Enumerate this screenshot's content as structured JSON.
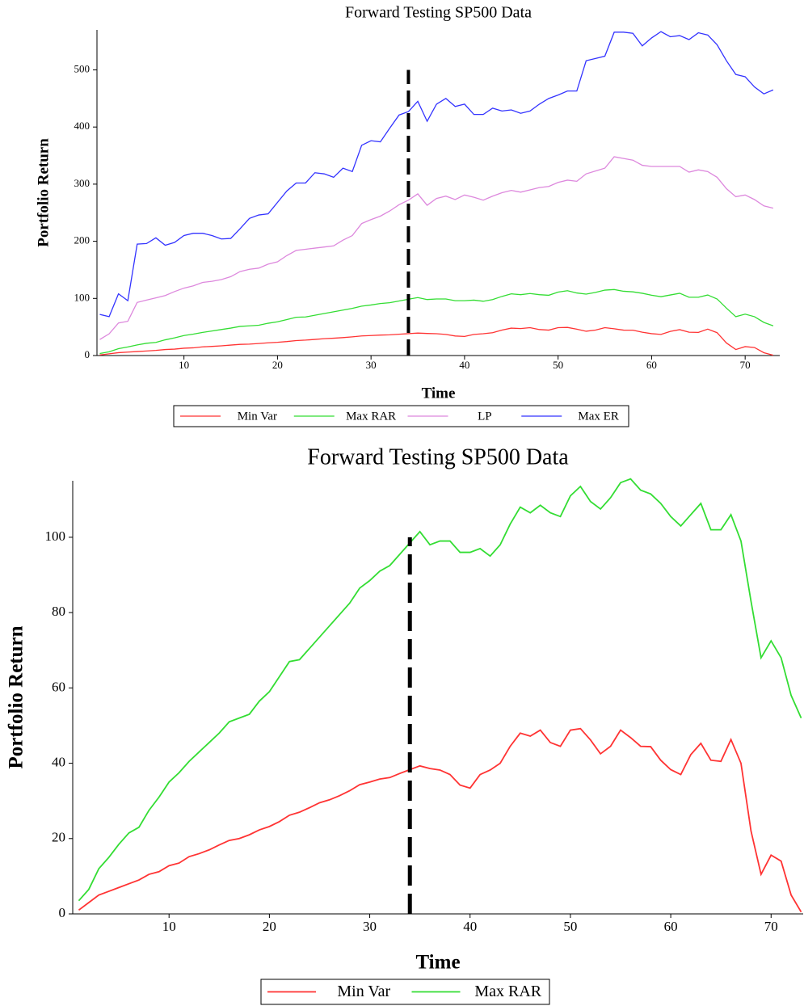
{
  "chart_data": [
    {
      "type": "line",
      "title": "Forward Testing SP500 Data",
      "x_label": "Time",
      "y_label": "Portfolio Return",
      "xlim": [
        0.7,
        73.7
      ],
      "xticks": [
        10,
        20,
        30,
        40,
        50,
        60,
        70
      ],
      "ylim": [
        0,
        570
      ],
      "yticks": [
        0,
        100,
        200,
        300,
        400,
        500
      ],
      "vline_x": 34,
      "vline_top": 500,
      "x": [
        1,
        2,
        3,
        4,
        5,
        6,
        7,
        8,
        9,
        10,
        11,
        12,
        13,
        14,
        15,
        16,
        17,
        18,
        19,
        20,
        21,
        22,
        23,
        24,
        25,
        26,
        27,
        28,
        29,
        30,
        31,
        32,
        33,
        34,
        35,
        36,
        37,
        38,
        39,
        40,
        41,
        42,
        43,
        44,
        45,
        46,
        47,
        48,
        49,
        50,
        51,
        52,
        53,
        54,
        55,
        56,
        57,
        58,
        59,
        60,
        61,
        62,
        63,
        64,
        65,
        66,
        67,
        68,
        69,
        70,
        71,
        72,
        73
      ],
      "series": [
        {
          "name": "Min Var",
          "color": "#ff3333",
          "values": [
            1,
            3,
            5,
            6,
            7,
            8,
            9,
            10.5,
            11.2,
            12.8,
            13.5,
            15.2,
            16,
            17,
            18.3,
            19.5,
            20,
            21,
            22.3,
            23.2,
            24.5,
            26.2,
            27,
            28.2,
            29.5,
            30.3,
            31.4,
            32.7,
            34.3,
            35,
            35.8,
            36.2,
            37.3,
            38.3,
            39.3,
            38.6,
            38.2,
            37,
            34.2,
            33.4,
            37,
            38.2,
            40,
            44.5,
            48,
            47.2,
            48.8,
            45.5,
            44.5,
            48.8,
            49.2,
            46.2,
            42.5,
            44.5,
            48.8,
            46.8,
            44.5,
            44.4,
            40.8,
            38.3,
            37,
            42.3,
            45.3,
            40.8,
            40.5,
            46.3,
            40,
            22,
            10.5,
            15.6,
            14,
            5,
            0.5
          ]
        },
        {
          "name": "Max RAR",
          "color": "#33dd33",
          "values": [
            3.5,
            6.5,
            12,
            15,
            18.5,
            21.5,
            23,
            27.5,
            31,
            35,
            37.5,
            40.5,
            43,
            45.5,
            48,
            51,
            52,
            53,
            56.5,
            59,
            63,
            67,
            67.5,
            70.5,
            73.5,
            76.5,
            79.5,
            82.5,
            86.5,
            88.5,
            91,
            92.5,
            95.5,
            98.5,
            101.5,
            98,
            99,
            99,
            96,
            96,
            97,
            95,
            98,
            103.5,
            108,
            106.5,
            108.5,
            106.5,
            105.5,
            111,
            113.5,
            109.5,
            107.5,
            110.5,
            114.5,
            115.5,
            112.5,
            111.5,
            109,
            105.5,
            103,
            106,
            109,
            102,
            102,
            106,
            99,
            83,
            68,
            72.5,
            68,
            58,
            52
          ]
        },
        {
          "name": "LP",
          "color": "#dd88dd",
          "values": [
            28,
            38,
            57,
            60,
            93,
            97,
            101,
            105,
            112,
            118,
            122,
            128,
            130,
            133,
            138,
            147,
            151,
            153,
            160,
            164,
            175,
            184,
            186,
            188,
            190,
            192,
            202,
            210,
            231,
            238,
            244,
            253,
            264,
            272,
            283,
            263,
            275,
            279,
            273,
            281,
            277,
            272,
            279,
            285,
            289,
            286,
            290,
            294,
            296,
            303,
            307,
            305,
            318,
            323,
            328,
            348,
            345,
            342,
            333,
            331,
            331,
            331,
            331,
            321,
            325,
            322,
            312,
            292,
            278,
            281,
            273,
            262,
            258
          ]
        },
        {
          "name": "Max ER",
          "color": "#3333ff",
          "values": [
            72,
            68,
            108,
            96,
            195,
            196,
            206,
            193,
            198,
            210,
            214,
            214,
            210,
            204,
            205,
            222,
            240,
            246,
            248,
            268,
            288,
            302,
            302,
            320,
            318,
            312,
            328,
            322,
            368,
            376,
            374,
            398,
            421,
            427,
            445,
            410,
            440,
            450,
            436,
            440,
            422,
            422,
            433,
            428,
            430,
            424,
            428,
            440,
            450,
            456,
            463,
            463,
            516,
            520,
            524,
            566,
            566,
            564,
            542,
            556,
            567,
            558,
            560,
            553,
            565,
            561,
            544,
            516,
            492,
            488,
            470,
            458,
            465
          ]
        }
      ]
    },
    {
      "type": "line",
      "title": "Forward Testing SP500 Data",
      "x_label": "Time",
      "y_label": "Portfolio Return",
      "xlim": [
        0.4,
        73.2
      ],
      "xticks": [
        10,
        20,
        30,
        40,
        50,
        60,
        70
      ],
      "ylim": [
        0,
        115
      ],
      "yticks": [
        0,
        20,
        40,
        60,
        80,
        100
      ],
      "vline_x": 34,
      "vline_top": 100,
      "x": [
        1,
        2,
        3,
        4,
        5,
        6,
        7,
        8,
        9,
        10,
        11,
        12,
        13,
        14,
        15,
        16,
        17,
        18,
        19,
        20,
        21,
        22,
        23,
        24,
        25,
        26,
        27,
        28,
        29,
        30,
        31,
        32,
        33,
        34,
        35,
        36,
        37,
        38,
        39,
        40,
        41,
        42,
        43,
        44,
        45,
        46,
        47,
        48,
        49,
        50,
        51,
        52,
        53,
        54,
        55,
        56,
        57,
        58,
        59,
        60,
        61,
        62,
        63,
        64,
        65,
        66,
        67,
        68,
        69,
        70,
        71,
        72,
        73
      ],
      "series": [
        {
          "name": "Min Var",
          "color": "#ff3333",
          "values": [
            1,
            3,
            5,
            6,
            7,
            8,
            9,
            10.5,
            11.2,
            12.8,
            13.5,
            15.2,
            16,
            17,
            18.3,
            19.5,
            20,
            21,
            22.3,
            23.2,
            24.5,
            26.2,
            27,
            28.2,
            29.5,
            30.3,
            31.4,
            32.7,
            34.3,
            35,
            35.8,
            36.2,
            37.3,
            38.3,
            39.3,
            38.6,
            38.2,
            37,
            34.2,
            33.4,
            37,
            38.2,
            40,
            44.5,
            48,
            47.2,
            48.8,
            45.5,
            44.5,
            48.8,
            49.2,
            46.2,
            42.5,
            44.5,
            48.8,
            46.8,
            44.5,
            44.4,
            40.8,
            38.3,
            37,
            42.3,
            45.3,
            40.8,
            40.5,
            46.3,
            40,
            22,
            10.5,
            15.6,
            14,
            5,
            0.5
          ]
        },
        {
          "name": "Max RAR",
          "color": "#33dd33",
          "values": [
            3.5,
            6.5,
            12,
            15,
            18.5,
            21.5,
            23,
            27.5,
            31,
            35,
            37.5,
            40.5,
            43,
            45.5,
            48,
            51,
            52,
            53,
            56.5,
            59,
            63,
            67,
            67.5,
            70.5,
            73.5,
            76.5,
            79.5,
            82.5,
            86.5,
            88.5,
            91,
            92.5,
            95.5,
            98.5,
            101.5,
            98,
            99,
            99,
            96,
            96,
            97,
            95,
            98,
            103.5,
            108,
            106.5,
            108.5,
            106.5,
            105.5,
            111,
            113.5,
            109.5,
            107.5,
            110.5,
            114.5,
            115.5,
            112.5,
            111.5,
            109,
            105.5,
            103,
            106,
            109,
            102,
            102,
            106,
            99,
            83,
            68,
            72.5,
            68,
            58,
            52
          ]
        }
      ]
    }
  ]
}
